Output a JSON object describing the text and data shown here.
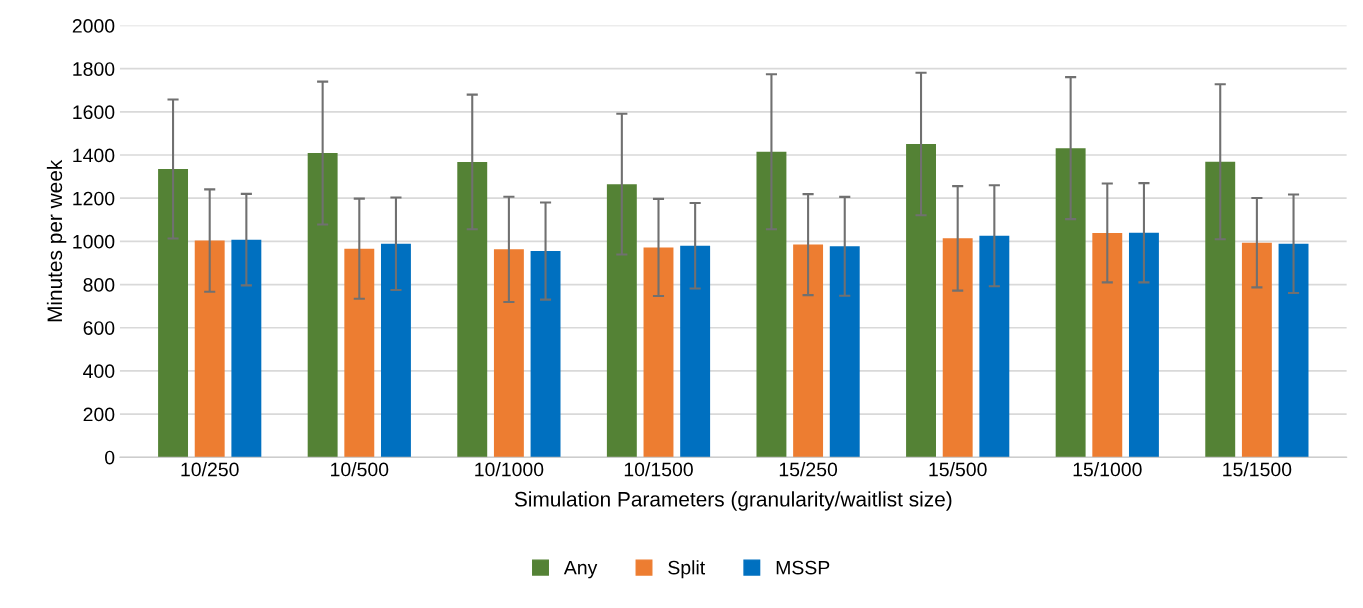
{
  "chart_data": {
    "type": "bar",
    "xlabel": "Simulation Parameters (granularity/waitlist size)",
    "ylabel": "Minutes per week",
    "categories": [
      "10/250",
      "10/500",
      "10/1000",
      "10/1500",
      "15/250",
      "15/500",
      "15/1000",
      "15/1500"
    ],
    "series": [
      {
        "name": "Any",
        "color": "#548235",
        "values": [
          1335,
          1409,
          1368,
          1265,
          1415,
          1451,
          1432,
          1369
        ],
        "errors": [
          322,
          331,
          312,
          326,
          359,
          330,
          329,
          359
        ]
      },
      {
        "name": "Split",
        "color": "#ed7d31",
        "values": [
          1004,
          966,
          963,
          972,
          985,
          1014,
          1039,
          994
        ],
        "errors": [
          237,
          232,
          244,
          225,
          234,
          242,
          229,
          207
        ]
      },
      {
        "name": "MSSP",
        "color": "#0070c0",
        "values": [
          1008,
          989,
          955,
          980,
          977,
          1026,
          1040,
          989
        ],
        "errors": [
          212,
          214,
          225,
          198,
          229,
          234,
          230,
          228
        ]
      }
    ],
    "ylim": [
      0,
      2000
    ],
    "yticks": [
      0,
      200,
      400,
      600,
      800,
      1000,
      1200,
      1400,
      1600,
      1800,
      2000
    ],
    "grid": "y",
    "legend": "bottom"
  }
}
